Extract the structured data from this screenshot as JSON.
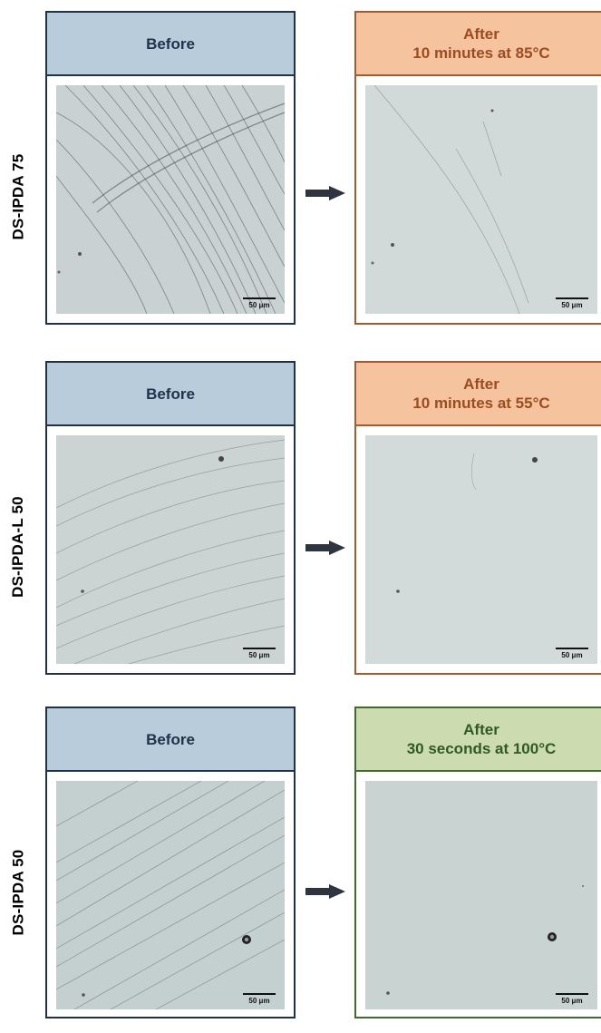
{
  "rows": [
    {
      "sample_label": "DS-IPDA 75",
      "before_title": "Before",
      "after_title_line1": "After",
      "after_title_line2": "10 minutes at 85°C",
      "scale_label": "50 μm"
    },
    {
      "sample_label": "DS-IPDA-L 50",
      "before_title": "Before",
      "after_title_line1": "After",
      "after_title_line2": "10 minutes at 55°C",
      "scale_label": "50 μm"
    },
    {
      "sample_label": "DS-IPDA 50",
      "before_title": "Before",
      "after_title_line1": "After",
      "after_title_line2": "30 seconds at 100°C",
      "scale_label": "50 μm"
    }
  ],
  "colors": {
    "before_header_bg": "#b9ccdb",
    "before_border": "#20324a",
    "after_orange_bg": "#f5c39d",
    "after_orange_border": "#a85a2c",
    "after_green_bg": "#cddcb0",
    "after_green_border": "#3f6b2c",
    "arrow": "#2e3440"
  }
}
